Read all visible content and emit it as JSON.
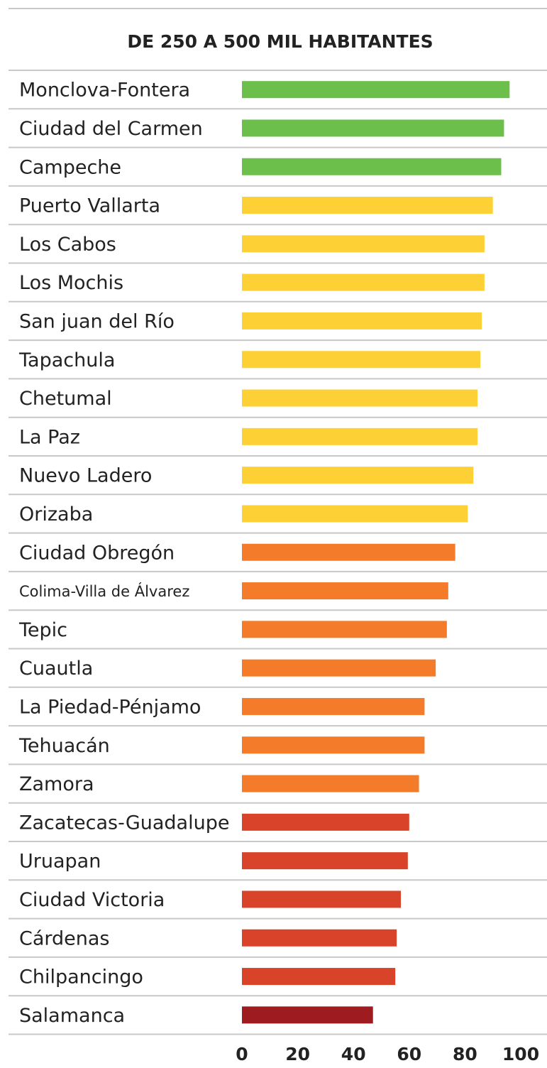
{
  "chart_data": {
    "type": "bar",
    "orientation": "horizontal",
    "title": "DE 250 A 500 MIL HABITANTES",
    "categories": [
      "Monclova-Fontera",
      "Ciudad del Carmen",
      "Campeche",
      "Puerto Vallarta",
      "Los Cabos",
      "Los Mochis",
      "San juan del Río",
      "Tapachula",
      "Chetumal",
      "La Paz",
      "Nuevo Ladero",
      "Orizaba",
      "Ciudad Obregón",
      "Colima-Villa de Álvarez",
      "Tepic",
      "Cuautla",
      "La Piedad-Pénjamo",
      "Tehuacán",
      "Zamora",
      "Zacatecas-Guadalupe",
      "Uruapan",
      "Ciudad Victoria",
      "Cárdenas",
      "Chilpancingo",
      "Salamanca"
    ],
    "values": [
      96,
      94,
      93,
      90,
      87,
      87,
      86,
      85.5,
      84.5,
      84.5,
      83,
      81,
      76.5,
      74,
      73.5,
      69.5,
      65.5,
      65.5,
      63.5,
      60,
      59.5,
      57,
      55.5,
      55,
      47
    ],
    "colors": [
      "#6cbf4b",
      "#6cbf4b",
      "#6cbf4b",
      "#fdd135",
      "#fdd135",
      "#fdd135",
      "#fdd135",
      "#fdd135",
      "#fdd135",
      "#fdd135",
      "#fdd135",
      "#fdd135",
      "#f47b2a",
      "#f47b2a",
      "#f47b2a",
      "#f47b2a",
      "#f47b2a",
      "#f47b2a",
      "#f47b2a",
      "#d9432a",
      "#d9432a",
      "#d9432a",
      "#d9432a",
      "#d9432a",
      "#9e1b20"
    ],
    "xlim": [
      0,
      100
    ],
    "xticks": [
      0,
      20,
      40,
      60,
      80,
      100
    ]
  }
}
